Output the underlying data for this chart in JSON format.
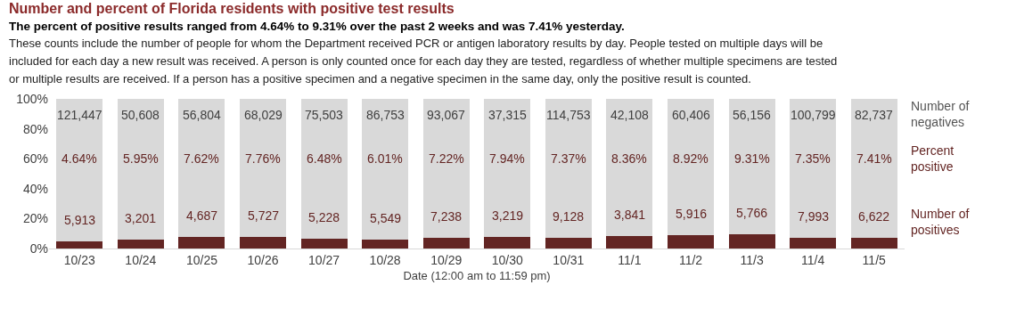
{
  "chart_data": {
    "type": "bar",
    "stacked": true,
    "title": "Number and percent of Florida residents with positive test results",
    "subtitle": "The percent of positive results ranged from 4.64% to 9.31% over the past 2 weeks and was 7.41% yesterday.",
    "xlabel": "Date (12:00 am to 11:59 pm)",
    "categories": [
      "10/23",
      "10/24",
      "10/25",
      "10/26",
      "10/27",
      "10/28",
      "10/29",
      "10/30",
      "10/31",
      "11/1",
      "11/2",
      "11/3",
      "11/4",
      "11/5"
    ],
    "series": [
      {
        "name": "Number of positives",
        "color": "#632523",
        "values": [
          4.64,
          5.95,
          7.62,
          7.76,
          6.48,
          6.01,
          7.22,
          7.94,
          7.37,
          8.36,
          8.92,
          9.31,
          7.35,
          7.41
        ]
      },
      {
        "name": "Number of negatives",
        "color": "#d9d9d9",
        "values": [
          95.36,
          94.05,
          92.38,
          92.24,
          93.52,
          93.99,
          92.78,
          92.06,
          92.63,
          91.64,
          91.08,
          90.69,
          92.65,
          92.59
        ]
      }
    ],
    "annotations": [
      "These counts include the number of people for whom the Department received PCR or antigen laboratory results by day. People tested on multiple days will be included for each day a new result was received. A person is only counted once for each day they are tested, regardless of whether multiple specimens are tested or multiple results are received. If a person has a positive specimen and a negative specimen in the same day, only the positive result is counted.",
      "Percent positive",
      "4.64%",
      "5.95%",
      "7.62%",
      "7.76%",
      "6.48%",
      "6.01%",
      "7.22%",
      "7.94%",
      "7.37%",
      "8.36%",
      "8.92%",
      "9.31%",
      "7.35%",
      "7.41%",
      {
        "text": "5,913",
        "x": "10/23",
        "y": 4.64
      },
      {
        "text": "3,201",
        "x": "10/24",
        "y": 5.95
      },
      {
        "text": "4,687",
        "x": "10/25",
        "y": 7.62
      },
      {
        "text": "5,727",
        "x": "10/26",
        "y": 7.76
      },
      {
        "text": "5,228",
        "x": "10/27",
        "y": 6.48
      },
      {
        "text": "5,549",
        "x": "10/28",
        "y": 6.01
      },
      {
        "text": "7,238",
        "x": "10/29",
        "y": 7.22
      },
      {
        "text": "3,219",
        "x": "10/30",
        "y": 7.94
      },
      {
        "text": "9,128",
        "x": "10/31",
        "y": 7.37
      },
      {
        "text": "3,841",
        "x": "11/1",
        "y": 8.36
      },
      {
        "text": "5,916",
        "x": "11/2",
        "y": 8.92
      },
      {
        "text": "5,766",
        "x": "11/3",
        "y": 9.31
      },
      {
        "text": "7,993",
        "x": "11/4",
        "y": 7.35
      },
      {
        "text": "6,622",
        "x": "11/5",
        "y": 7.41
      },
      {
        "text": "121,447",
        "x": "10/23",
        "y": 100
      },
      {
        "text": "50,608",
        "x": "10/24",
        "y": 100
      },
      {
        "text": "56,804",
        "x": "10/25",
        "y": 100
      },
      {
        "text": "68,029",
        "x": "10/26",
        "y": 100
      },
      {
        "text": "75,503",
        "x": "10/27",
        "y": 100
      },
      {
        "text": "86,753",
        "x": "10/28",
        "y": 100
      },
      {
        "text": "93,067",
        "x": "10/29",
        "y": 100
      },
      {
        "text": "37,315",
        "x": "10/30",
        "y": 100
      },
      {
        "text": "114,753",
        "x": "10/31",
        "y": 100
      },
      {
        "text": "42,108",
        "x": "11/1",
        "y": 100
      },
      {
        "text": "60,406",
        "x": "11/2",
        "y": 100
      },
      {
        "text": "56,156",
        "x": "11/3",
        "y": 100
      },
      {
        "text": "100,799",
        "x": "11/4",
        "y": 100
      },
      {
        "text": "82,737",
        "x": "11/5",
        "y": 100
      }
    ],
    "ylim": [
      0,
      100
    ],
    "yticks": [
      {
        "value": 0,
        "label": "0%"
      },
      {
        "value": 20,
        "label": "20%"
      },
      {
        "value": 40,
        "label": "40%"
      },
      {
        "value": 60,
        "label": "60%"
      },
      {
        "value": 80,
        "label": "80%"
      },
      {
        "value": 100,
        "label": "100%"
      }
    ],
    "grid": false,
    "legend": false
  }
}
